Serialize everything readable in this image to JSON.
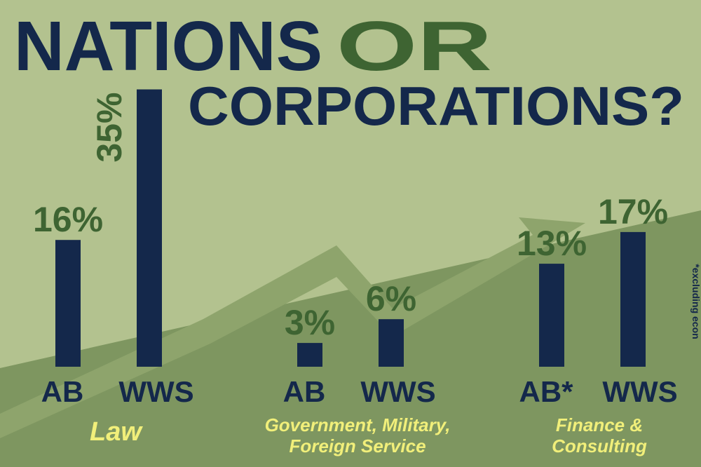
{
  "chart_data": {
    "type": "bar",
    "title": [
      "NATIONS",
      "OR",
      "CORPORATIONS?"
    ],
    "title_colors": [
      "#14284b",
      "#3e6432",
      "#14284b"
    ],
    "categories": [
      "Law",
      "Government, Military, Foreign Service",
      "Finance & Consulting"
    ],
    "series": [
      {
        "name": "AB",
        "color": "#14284b",
        "values": [
          16,
          3,
          13
        ],
        "value_labels": [
          "16%",
          "3%",
          "13%"
        ]
      },
      {
        "name": "WWS",
        "color": "#14284b",
        "values": [
          35,
          6,
          17
        ],
        "value_labels": [
          "35%",
          "6%",
          "17%"
        ]
      }
    ],
    "ylim": [
      0,
      40
    ],
    "footnote_mark": "*",
    "footnote": "*excluding econ"
  }
}
